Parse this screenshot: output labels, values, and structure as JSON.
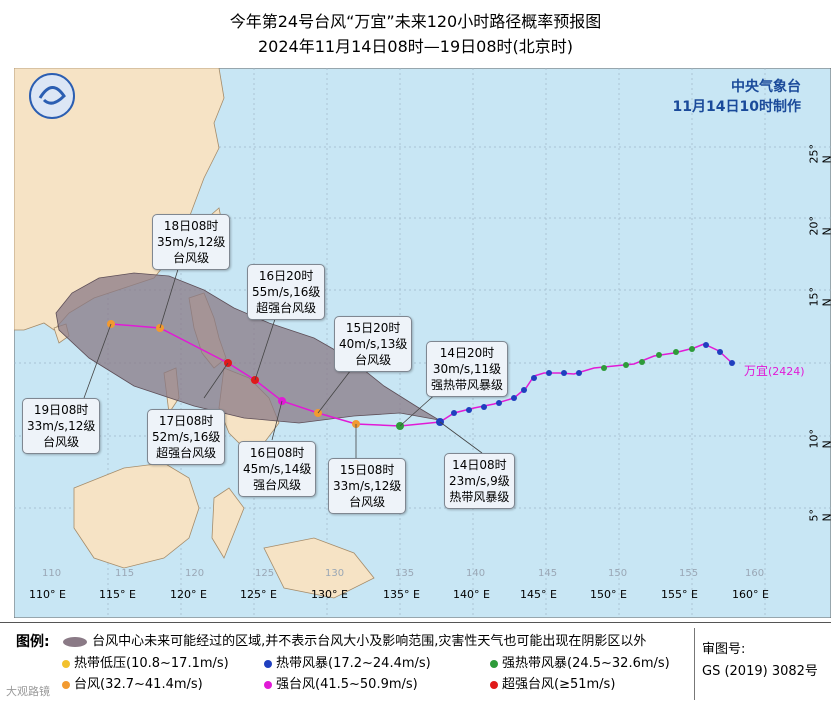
{
  "title_line1": "今年第24号台风“万宜”未来120小时路径概率预报图",
  "title_line2": "2024年11月14日08时—19日08时(北京时)",
  "agency": "中央气象台",
  "issued": "11月14日10时制作",
  "typhoon_name": "万宜",
  "typhoon_code": "(2424)",
  "lon_labels": [
    "110° E",
    "115° E",
    "120° E",
    "125° E",
    "130° E",
    "135° E",
    "140° E",
    "145° E",
    "150° E",
    "155° E",
    "160° E"
  ],
  "lat_labels": [
    "25° N",
    "20° N",
    "15° N",
    "10° N",
    "5° N"
  ],
  "faint_labels": [
    "110",
    "115",
    "120",
    "125",
    "130",
    "135",
    "140",
    "145",
    "150",
    "155",
    "160"
  ],
  "forecast_boxes": [
    {
      "name": "box-18-08",
      "lines": [
        "18日08时",
        "35m/s,12级",
        "台风级"
      ]
    },
    {
      "name": "box-16-20",
      "lines": [
        "16日20时",
        "55m/s,16级",
        "超强台风级"
      ]
    },
    {
      "name": "box-15-20",
      "lines": [
        "15日20时",
        "40m/s,13级",
        "台风级"
      ]
    },
    {
      "name": "box-14-20",
      "lines": [
        "14日20时",
        "30m/s,11级",
        "强热带风暴级"
      ]
    },
    {
      "name": "box-19-08",
      "lines": [
        "19日08时",
        "33m/s,12级",
        "台风级"
      ]
    },
    {
      "name": "box-17-08",
      "lines": [
        "17日08时",
        "52m/s,16级",
        "超强台风级"
      ]
    },
    {
      "name": "box-16-08",
      "lines": [
        "16日08时",
        "45m/s,14级",
        "强台风级"
      ]
    },
    {
      "name": "box-15-08",
      "lines": [
        "15日08时",
        "33m/s,12级",
        "台风级"
      ]
    },
    {
      "name": "box-14-08",
      "lines": [
        "14日08时",
        "23m/s,9级",
        "热带风暴级"
      ]
    }
  ],
  "legend": {
    "heading": "图例:",
    "cone": "台风中心未来可能经过的区域,并不表示台风大小及影响范围,灾害性天气也可能出现在阴影区以外",
    "items": [
      {
        "label": "热带低压(10.8~17.1m/s)",
        "color": "#f2c12e"
      },
      {
        "label": "热带风暴(17.2~24.4m/s)",
        "color": "#1f3fbf"
      },
      {
        "label": "强热带风暴(24.5~32.6m/s)",
        "color": "#2e9b3a"
      },
      {
        "label": "台风(32.7~41.4m/s)",
        "color": "#f29a30"
      },
      {
        "label": "强台风(41.5~50.9m/s)",
        "color": "#e11ad6"
      },
      {
        "label": "超强台风(≥51m/s)",
        "color": "#e01a1a"
      }
    ],
    "review_title": "审图号:",
    "review_no": "GS (2019) 3082号"
  },
  "watermark": "大观路镜",
  "colors": {
    "sea": "#c8e6f4",
    "land": "#f6e3c5",
    "cone": "#8a7a86",
    "track": "#e11ad6",
    "agency": "#1a4a9a"
  }
}
